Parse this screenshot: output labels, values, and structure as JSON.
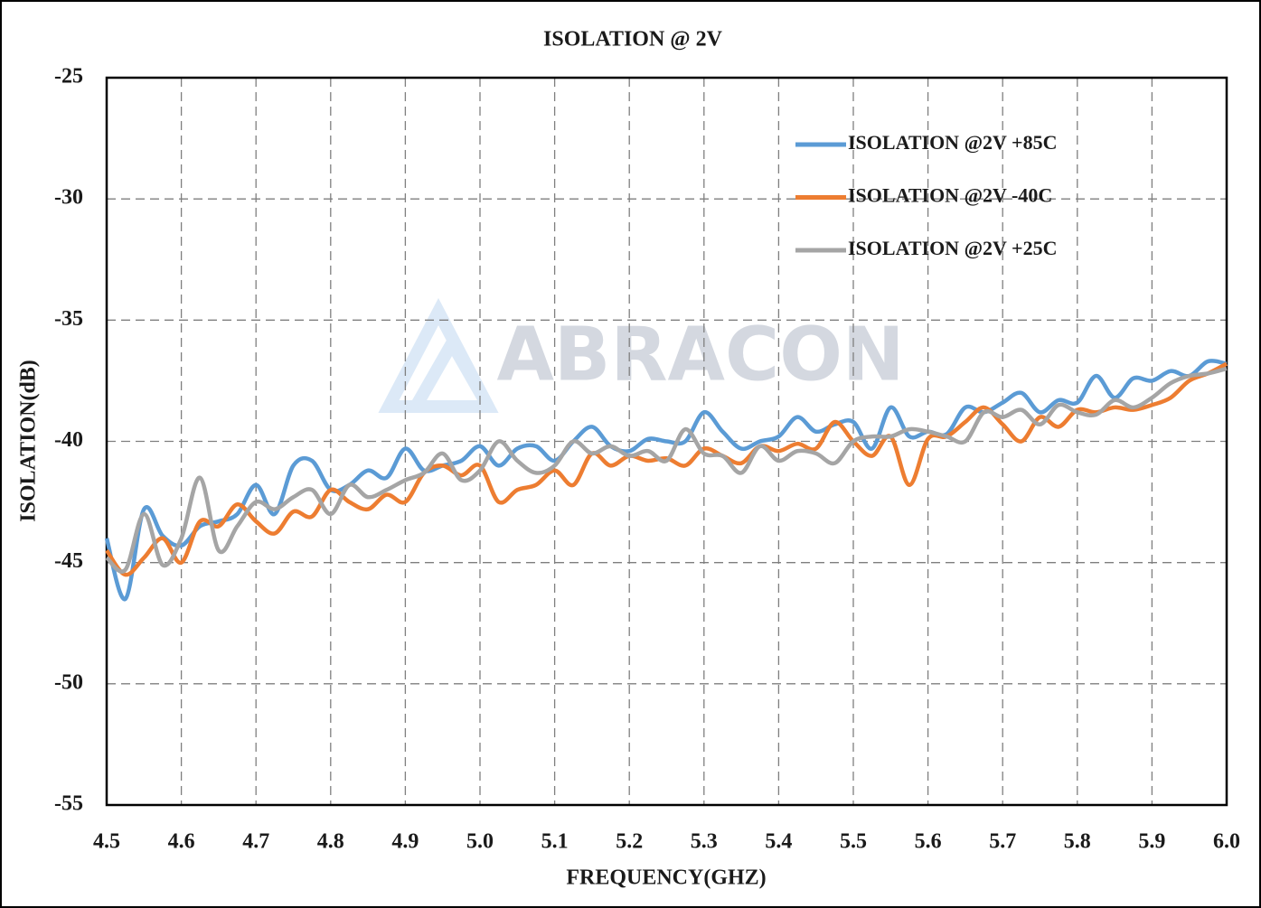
{
  "chart_data": {
    "type": "line",
    "title": "ISOLATION @ 2V",
    "watermark": "ABRACON",
    "x_label": "FREQUENCY(GHZ)",
    "y_label": "ISOLATION(dB)",
    "x": [
      4.5,
      4.525,
      4.55,
      4.575,
      4.6,
      4.625,
      4.65,
      4.675,
      4.7,
      4.725,
      4.75,
      4.775,
      4.8,
      4.825,
      4.85,
      4.875,
      4.9,
      4.925,
      4.95,
      4.975,
      5,
      5.025,
      5.05,
      5.075,
      5.1,
      5.125,
      5.15,
      5.175,
      5.2,
      5.225,
      5.25,
      5.275,
      5.3,
      5.325,
      5.35,
      5.375,
      5.4,
      5.425,
      5.45,
      5.475,
      5.5,
      5.525,
      5.55,
      5.575,
      5.6,
      5.625,
      5.65,
      5.675,
      5.7,
      5.725,
      5.75,
      5.775,
      5.8,
      5.825,
      5.85,
      5.875,
      5.9,
      5.925,
      5.95,
      5.975,
      6
    ],
    "series": [
      {
        "name": "ISOLATION @2V +85C",
        "color": "#5b9bd5",
        "values": [
          -44.0,
          -46.5,
          -42.8,
          -43.9,
          -44.3,
          -43.5,
          -43.3,
          -43.0,
          -41.8,
          -43.0,
          -41.0,
          -40.8,
          -42.0,
          -41.8,
          -41.2,
          -41.5,
          -40.3,
          -41.2,
          -41.0,
          -40.8,
          -40.2,
          -41.0,
          -40.3,
          -40.2,
          -40.8,
          -40.0,
          -39.4,
          -40.2,
          -40.4,
          -39.9,
          -40.0,
          -40.0,
          -38.8,
          -39.6,
          -40.3,
          -40.0,
          -39.8,
          -39.0,
          -39.6,
          -39.3,
          -39.2,
          -40.3,
          -38.6,
          -39.8,
          -39.6,
          -39.7,
          -38.6,
          -38.8,
          -38.4,
          -38.0,
          -38.8,
          -38.3,
          -38.4,
          -37.3,
          -38.2,
          -37.4,
          -37.5,
          -37.1,
          -37.3,
          -36.7,
          -36.8
        ]
      },
      {
        "name": "ISOLATION @2V -40C",
        "color": "#ed7d31",
        "values": [
          -44.5,
          -45.5,
          -44.8,
          -44.0,
          -45.0,
          -43.3,
          -43.5,
          -42.6,
          -43.3,
          -43.8,
          -42.9,
          -43.1,
          -42.0,
          -42.5,
          -42.8,
          -42.2,
          -42.5,
          -41.3,
          -41.0,
          -41.4,
          -41.0,
          -42.5,
          -42.0,
          -41.8,
          -41.2,
          -41.8,
          -40.5,
          -41.0,
          -40.6,
          -40.8,
          -40.7,
          -41.0,
          -40.3,
          -40.6,
          -40.9,
          -40.2,
          -40.4,
          -40.1,
          -40.3,
          -39.2,
          -40.0,
          -40.6,
          -39.8,
          -41.8,
          -39.9,
          -39.8,
          -39.2,
          -38.6,
          -39.3,
          -40.0,
          -39.0,
          -39.4,
          -38.7,
          -38.8,
          -38.6,
          -38.7,
          -38.5,
          -38.2,
          -37.5,
          -37.2,
          -36.8
        ]
      },
      {
        "name": "ISOLATION @2V +25C",
        "color": "#a5a5a5",
        "values": [
          -44.8,
          -45.3,
          -43.0,
          -45.1,
          -44.0,
          -41.5,
          -44.5,
          -43.5,
          -42.5,
          -42.8,
          -42.3,
          -42.0,
          -43.0,
          -41.8,
          -42.3,
          -42.0,
          -41.6,
          -41.3,
          -40.5,
          -41.6,
          -41.2,
          -40.0,
          -40.8,
          -41.3,
          -41.0,
          -40.0,
          -40.5,
          -40.2,
          -40.6,
          -40.4,
          -40.8,
          -39.5,
          -40.5,
          -40.6,
          -41.3,
          -40.2,
          -40.8,
          -40.4,
          -40.5,
          -40.9,
          -40.0,
          -39.8,
          -39.8,
          -39.5,
          -39.6,
          -39.8,
          -40.0,
          -38.8,
          -39.0,
          -38.7,
          -39.3,
          -38.5,
          -38.8,
          -38.9,
          -38.3,
          -38.6,
          -38.2,
          -37.6,
          -37.3,
          -37.2,
          -37.0
        ]
      }
    ],
    "xlim": [
      4.5,
      6
    ],
    "xticks": [
      4.5,
      4.6,
      4.7,
      4.8,
      4.9,
      {
        "value": 5,
        "label": "5.0"
      },
      5.1,
      5.2,
      5.3,
      5.4,
      5.5,
      5.6,
      5.7,
      5.8,
      5.9,
      {
        "value": 6,
        "label": "6.0"
      }
    ],
    "ylim": [
      -55,
      -25
    ],
    "yticks": [
      -55,
      -50,
      -45,
      -40,
      -35,
      -30,
      -25
    ],
    "grid": true,
    "legend": "upper right"
  }
}
